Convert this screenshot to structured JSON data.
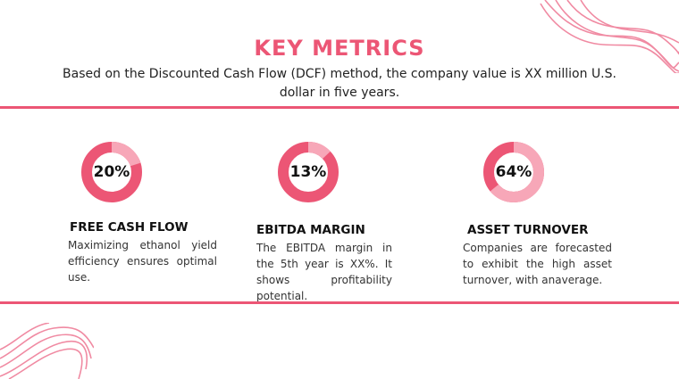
{
  "header": {
    "title": "KEY METRICS",
    "subtitle": "Based on the Discounted Cash Flow (DCF) method, the company value is XX million U.S. dollar in five years."
  },
  "colors": {
    "accent": "#ec5675",
    "ring_light": "#f7a7b8",
    "decoration": "#f08aa2"
  },
  "metrics": [
    {
      "value_label": "20%",
      "value": 20,
      "heading": "FREE CASH FLOW",
      "description": "Maximizing ethanol yield efficiency ensures optimal use."
    },
    {
      "value_label": "13%",
      "value": 13,
      "heading": "EBITDA MARGIN",
      "description": "The EBITDA margin in the 5th year is XX%. It shows profitability potential."
    },
    {
      "value_label": "64%",
      "value": 64,
      "heading": "ASSET TURNOVER",
      "description": "Companies are forecasted to exhibit the high asset turnover, with anaverage."
    }
  ]
}
